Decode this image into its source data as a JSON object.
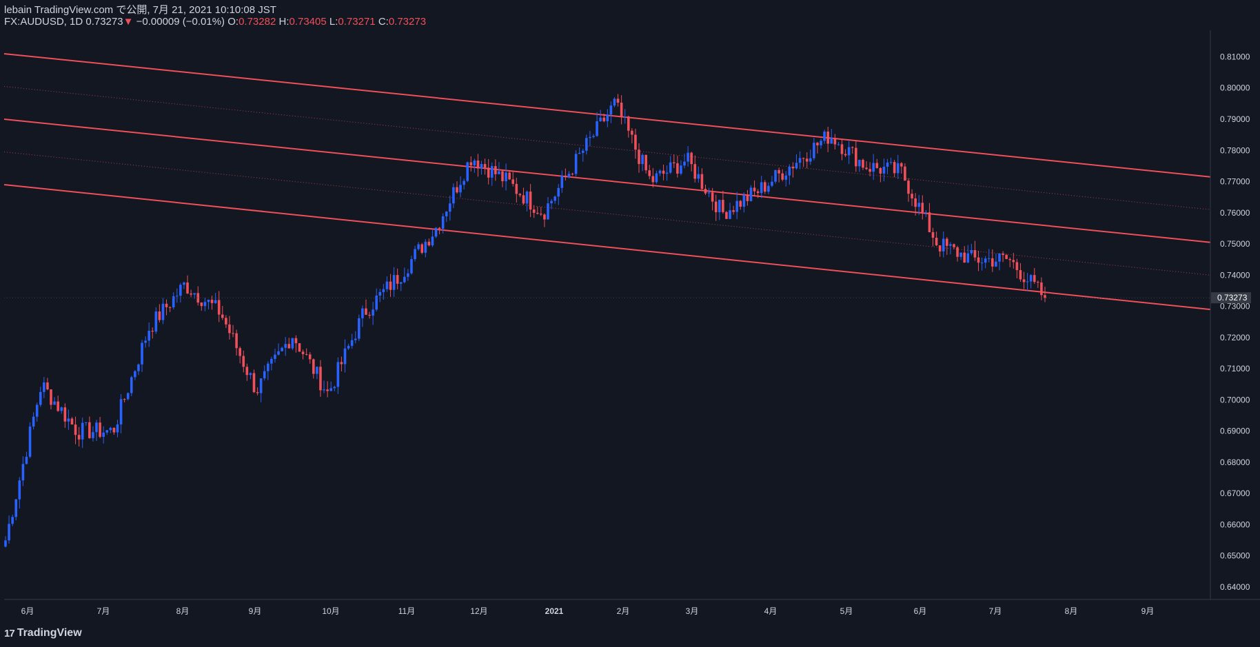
{
  "header": {
    "published": "lebain TradingView.com で公開, 7月 21, 2021 10:10:08 JST",
    "symbol": "FX:AUDUSD, 1D",
    "last": "0.73273",
    "change_arrow": "▼",
    "change": "−0.00009 (−0.01%)",
    "o_label": "O:",
    "o_value": "0.73282",
    "h_label": "H:",
    "h_value": "0.73405",
    "l_label": "L:",
    "l_value": "0.73271",
    "c_label": "C:",
    "c_value": "0.73273"
  },
  "footer": {
    "logo_icon": "tradingview-logo-icon",
    "brand": "TradingView"
  },
  "colors": {
    "background": "#131722",
    "up": "#2962ff",
    "down": "#f0505a",
    "channel": "#f0505a",
    "axis_text": "#d1d4dc",
    "price_tag_bg": "#363a45"
  },
  "chart_data": {
    "type": "candlestick",
    "symbol": "FX:AUDUSD",
    "interval": "1D",
    "ylim": [
      0.636,
      0.8185
    ],
    "y_ticks": [
      "0.64000",
      "0.65000",
      "0.66000",
      "0.67000",
      "0.68000",
      "0.69000",
      "0.70000",
      "0.71000",
      "0.72000",
      "0.73000",
      "0.74000",
      "0.75000",
      "0.76000",
      "0.77000",
      "0.78000",
      "0.79000",
      "0.80000",
      "0.81000"
    ],
    "x_ticks": [
      "6月",
      "7月",
      "8月",
      "9月",
      "10月",
      "11月",
      "12月",
      "2021",
      "2月",
      "3月",
      "4月",
      "5月",
      "6月",
      "7月",
      "8月",
      "9月"
    ],
    "last_price": "0.73273",
    "trend_close_points": [
      [
        "5月",
        0.655
      ],
      [
        "6月",
        0.705
      ],
      [
        "6月",
        0.69
      ],
      [
        "7月",
        0.69
      ],
      [
        "8月",
        0.723
      ],
      [
        "9月",
        0.737
      ],
      [
        "9月",
        0.728
      ],
      [
        "10月",
        0.703
      ],
      [
        "10月",
        0.721
      ],
      [
        "11月",
        0.702
      ],
      [
        "11月",
        0.728
      ],
      [
        "12月",
        0.74
      ],
      [
        "12月",
        0.755
      ],
      [
        "2021",
        0.778
      ],
      [
        "2021",
        0.77
      ],
      [
        "2月",
        0.76
      ],
      [
        "2月",
        0.778
      ],
      [
        "3月",
        0.795
      ],
      [
        "3月",
        0.77
      ],
      [
        "3月",
        0.777
      ],
      [
        "4月",
        0.76
      ],
      [
        "4月",
        0.767
      ],
      [
        "5月",
        0.776
      ],
      [
        "5月",
        0.785
      ],
      [
        "6月",
        0.775
      ],
      [
        "6月",
        0.773
      ],
      [
        "6月",
        0.75
      ],
      [
        "7月",
        0.745
      ],
      [
        "7月",
        0.745
      ],
      [
        "7月",
        0.7327
      ]
    ],
    "channel_lines": [
      {
        "style": "solid",
        "start": [
          "5月",
          0.811
        ],
        "end": [
          "9月",
          0.7715
        ]
      },
      {
        "style": "solid",
        "start": [
          "5月",
          0.79
        ],
        "end": [
          "9月",
          0.7505
        ]
      },
      {
        "style": "solid",
        "start": [
          "5月",
          0.769
        ],
        "end": [
          "9月",
          0.729
        ]
      },
      {
        "style": "dotted",
        "start": [
          "5月",
          0.8005
        ],
        "end": [
          "9月",
          0.761
        ]
      },
      {
        "style": "dotted",
        "start": [
          "5月",
          0.7795
        ],
        "end": [
          "9月",
          0.74
        ]
      }
    ]
  }
}
